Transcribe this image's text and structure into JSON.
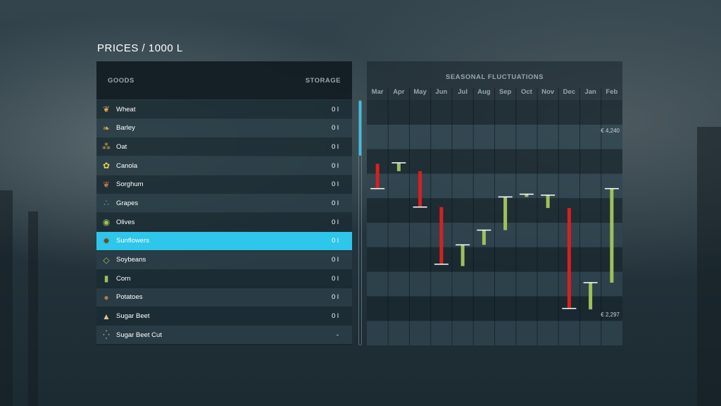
{
  "page": {
    "title": "PRICES / 1000 L"
  },
  "goods_table": {
    "header_goods": "GOODS",
    "header_storage": "STORAGE",
    "rows": [
      {
        "name": "Wheat",
        "storage": "0 l",
        "icon": "wheat-icon"
      },
      {
        "name": "Barley",
        "storage": "0 l",
        "icon": "barley-icon"
      },
      {
        "name": "Oat",
        "storage": "0 l",
        "icon": "oat-icon"
      },
      {
        "name": "Canola",
        "storage": "0 l",
        "icon": "canola-icon"
      },
      {
        "name": "Sorghum",
        "storage": "0 l",
        "icon": "sorghum-icon"
      },
      {
        "name": "Grapes",
        "storage": "0 l",
        "icon": "grapes-icon"
      },
      {
        "name": "Olives",
        "storage": "0 l",
        "icon": "olives-icon"
      },
      {
        "name": "Sunflowers",
        "storage": "0 l",
        "icon": "sunflower-icon"
      },
      {
        "name": "Soybeans",
        "storage": "0 l",
        "icon": "soybeans-icon"
      },
      {
        "name": "Corn",
        "storage": "0 l",
        "icon": "corn-icon"
      },
      {
        "name": "Potatoes",
        "storage": "0 l",
        "icon": "potato-icon"
      },
      {
        "name": "Sugar Beet",
        "storage": "0 l",
        "icon": "sugar-beet-icon"
      },
      {
        "name": "Sugar Beet Cut",
        "storage": "-",
        "icon": "sugar-beet-cut-icon"
      }
    ],
    "selected": "Sunflowers"
  },
  "colors": {
    "accent": "#2ec6ea",
    "increase": "#9ec15a",
    "decrease": "#d7201f"
  },
  "chart_data": {
    "type": "bar",
    "title": "SEASONAL FLUCTUATIONS",
    "categories": [
      "Mar",
      "Apr",
      "May",
      "Jun",
      "Jul",
      "Aug",
      "Sep",
      "Oct",
      "Nov",
      "Dec",
      "Jan",
      "Feb"
    ],
    "max_label": "€ 4,240",
    "min_label": "€ 2,297",
    "ylim": [
      2297,
      4240
    ],
    "series": [
      {
        "start": 3870,
        "end": 3600
      },
      {
        "start": 3790,
        "end": 3880
      },
      {
        "start": 3790,
        "end": 3400
      },
      {
        "start": 3400,
        "end": 2780
      },
      {
        "start": 2760,
        "end": 2990
      },
      {
        "start": 2990,
        "end": 3150
      },
      {
        "start": 3150,
        "end": 3510
      },
      {
        "start": 3510,
        "end": 3540
      },
      {
        "start": 3390,
        "end": 3530
      },
      {
        "start": 3390,
        "end": 2300
      },
      {
        "start": 2290,
        "end": 2580
      },
      {
        "start": 2580,
        "end": 3600
      }
    ]
  }
}
